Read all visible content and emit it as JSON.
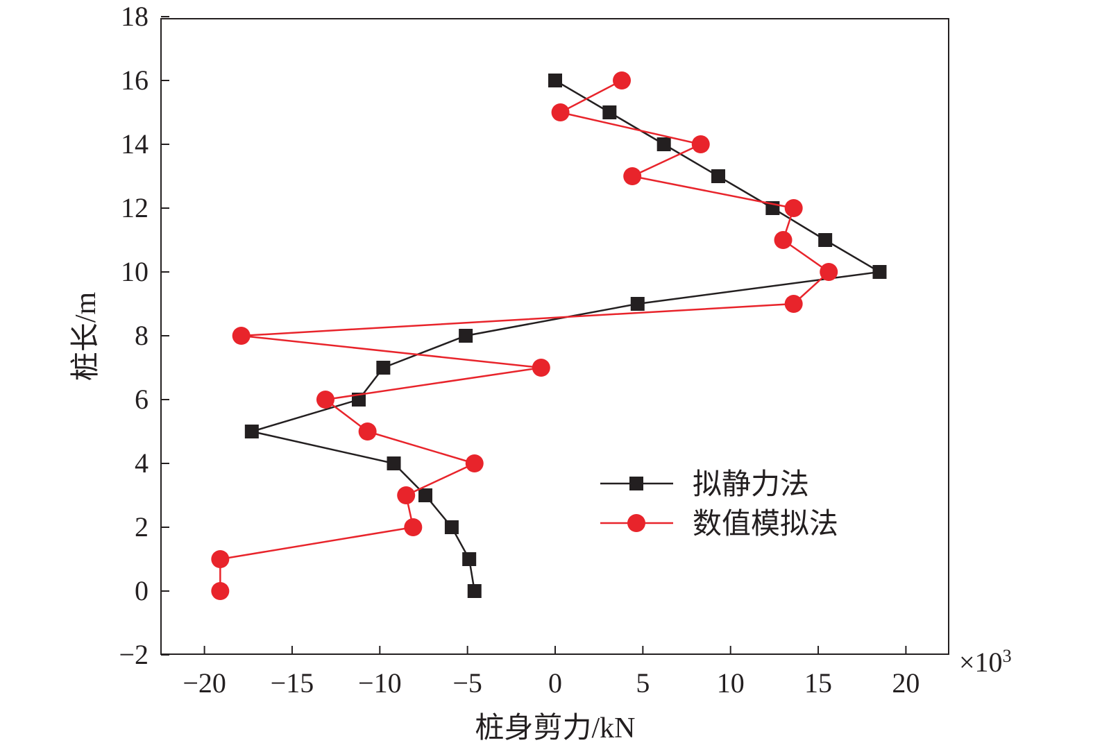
{
  "chart_data": {
    "type": "line",
    "xlabel": "桩身剪力/kN",
    "ylabel": "桩长/m",
    "x_multiplier": "×10",
    "x_multiplier_exp": "3",
    "xlim": [
      -22.5,
      22.5
    ],
    "ylim": [
      -2,
      18
    ],
    "xticks": [
      -20,
      -15,
      -10,
      -5,
      0,
      5,
      10,
      15,
      20
    ],
    "xtick_labels": [
      "−20",
      "−15",
      "−10",
      "−5",
      "0",
      "5",
      "10",
      "15",
      "20"
    ],
    "yticks": [
      -2,
      0,
      2,
      4,
      6,
      8,
      10,
      12,
      14,
      16,
      18
    ],
    "ytick_labels": [
      "−2",
      "0",
      "2",
      "4",
      "6",
      "8",
      "10",
      "12",
      "14",
      "16",
      "18"
    ],
    "grid": false,
    "legend_position": "lower-right",
    "series": [
      {
        "name": "拟静力法",
        "color": "#231f20",
        "marker": "square",
        "y": [
          16,
          15,
          14,
          13,
          12,
          11,
          10,
          9,
          8,
          7,
          6,
          5,
          4,
          3,
          2,
          1,
          0
        ],
        "x": [
          0.0,
          3.1,
          6.2,
          9.3,
          12.4,
          15.4,
          18.5,
          4.7,
          -5.1,
          -9.8,
          -11.2,
          -17.3,
          -9.2,
          -7.4,
          -5.9,
          -4.9,
          -4.6
        ]
      },
      {
        "name": "数值模拟法",
        "color": "#e8242b",
        "marker": "circle",
        "y": [
          16,
          15,
          14,
          13,
          12,
          11,
          10,
          9,
          8,
          7,
          6,
          5,
          4,
          3,
          2,
          1,
          0
        ],
        "x": [
          3.8,
          0.3,
          8.3,
          4.4,
          13.6,
          13.0,
          15.6,
          13.6,
          -17.9,
          -0.8,
          -13.1,
          -10.7,
          -4.6,
          -8.5,
          -8.1,
          -19.1,
          -19.1
        ]
      }
    ]
  }
}
